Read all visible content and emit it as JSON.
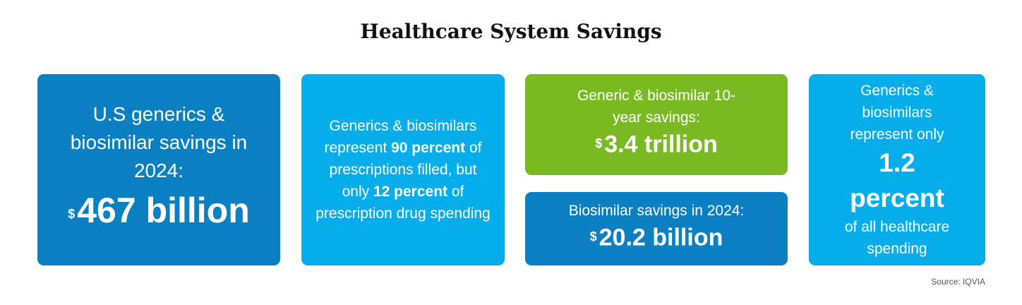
{
  "header": {
    "title": "Healthcare System Savings"
  },
  "cards": [
    {
      "text": "U.S generics & biosimilar savings in 2024:",
      "currency": "$",
      "figure": "467 billion"
    },
    {
      "text_1": "Generics & biosimilars represent",
      "figure_1": "90 percent",
      "text_2": "of prescriptions filled, but only",
      "figure_2": "12 percent",
      "text_3": "of prescription drug spending"
    },
    {
      "text": "Generic & biosimilar 10-year savings:",
      "currency": "$",
      "figure": "3.4 trillion"
    },
    {
      "text": "Biosimilar savings in 2024:",
      "currency": "$",
      "figure": "20.2 billion"
    },
    {
      "text_1": "Generics & biosimilars represent only",
      "figure": "1.2 percent",
      "text_2": "of all healthcare spending"
    }
  ],
  "footer": {
    "source": "Source: IQVIA"
  }
}
